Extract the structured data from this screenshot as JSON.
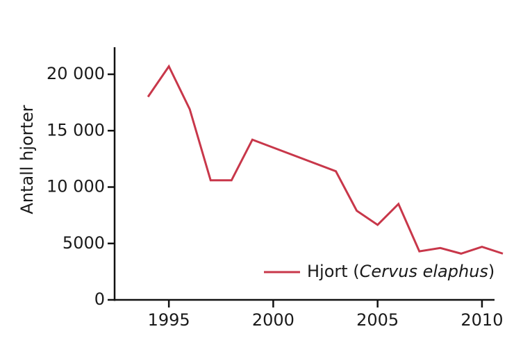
{
  "chart_data": {
    "type": "line",
    "y_label": "Antall hjorter",
    "x": [
      1994,
      1995,
      1996,
      1997,
      1998,
      1999,
      2003,
      2004,
      2005,
      2006,
      2007,
      2008,
      2009,
      2010,
      2011
    ],
    "series": [
      {
        "name": "Hjort (Cervus elaphus)",
        "color": "#c8374a",
        "values": [
          18000,
          20700,
          16900,
          10600,
          10600,
          14200,
          11400,
          7900,
          6650,
          8500,
          4300,
          4600,
          4100,
          4700,
          4100
        ]
      }
    ],
    "xlim": [
      1992.4,
      2011.2
    ],
    "xticks": [
      1995,
      2000,
      2005,
      2010
    ],
    "ylim": [
      0,
      22400
    ],
    "yticks": [
      0,
      5000,
      {
        "value": 10000,
        "label": "10 000"
      },
      {
        "value": 15000,
        "label": "15 000"
      },
      {
        "value": 20000,
        "label": "20 000"
      }
    ],
    "legend": "lower-right"
  }
}
